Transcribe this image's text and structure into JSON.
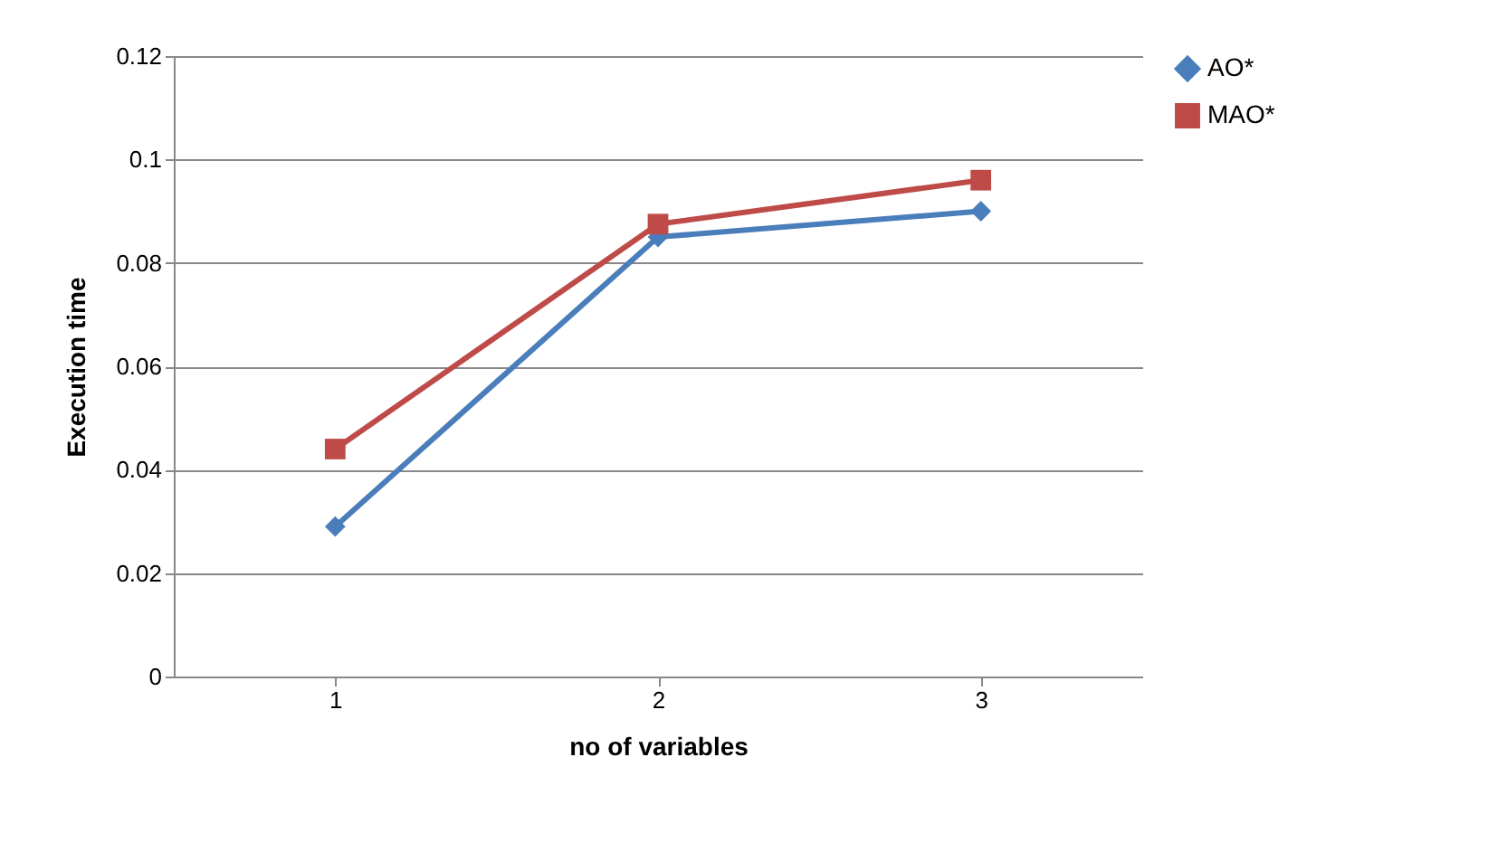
{
  "chart_data": {
    "type": "line",
    "xlabel": "no of variables",
    "ylabel": "Execution time",
    "categories": [
      "1",
      "2",
      "3"
    ],
    "series": [
      {
        "name": "AO*",
        "color": "#4a7ebb",
        "marker": "diamond",
        "values": [
          0.029,
          0.085,
          0.09
        ]
      },
      {
        "name": "MAO*",
        "color": "#be4b48",
        "marker": "square",
        "values": [
          0.044,
          0.0875,
          0.096
        ]
      }
    ],
    "ylim": [
      0,
      0.12
    ],
    "yticks": [
      0,
      0.02,
      0.04,
      0.06,
      0.08,
      0.1,
      0.12
    ],
    "grid": "y",
    "legend": "right",
    "line_style": "solid"
  }
}
